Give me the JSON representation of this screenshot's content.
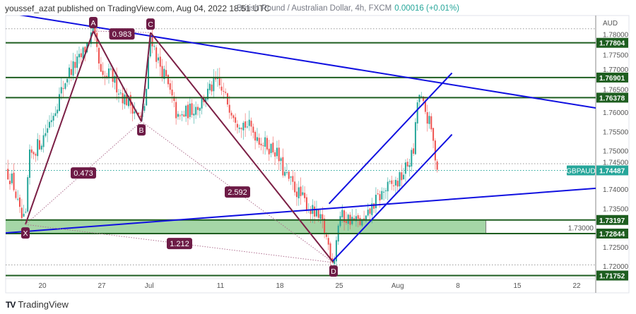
{
  "header": {
    "published": "youssef_azat published on TradingView.com, Aug 04, 2022 18:51 UTC"
  },
  "legend": {
    "symbol_title": "British Pound / Australian Dollar, 4h, FXCM",
    "change": "0.00016 (+0.01%)"
  },
  "footer": {
    "logo_text": "TradingView"
  },
  "colors": {
    "up": "#26a69a",
    "down": "#ef5350",
    "level": "#1e5e20",
    "zone": "#a5d6a7",
    "trend": "#1010e0",
    "pattern": "#7b1f45",
    "label_bg": "#6d1b46",
    "price_tag": "#26a69a"
  },
  "chart_data": {
    "type": "candlestick",
    "title": "British Pound / Australian Dollar, 4h, FXCM",
    "currency_label": "AUD",
    "ylim": [
      1.715,
      1.785
    ],
    "y_ticks": [
      "1.78000",
      "1.77500",
      "1.77000",
      "1.76500",
      "1.76000",
      "1.75500",
      "1.75000",
      "1.74500",
      "1.74000",
      "1.73500",
      "1.73000",
      "1.72500",
      "1.72000"
    ],
    "x_ticks": [
      {
        "label": "20",
        "day": 0
      },
      {
        "label": "27",
        "day": 7
      },
      {
        "label": "Jul",
        "day": 12.6
      },
      {
        "label": "11",
        "day": 21
      },
      {
        "label": "18",
        "day": 28
      },
      {
        "label": "25",
        "day": 35
      },
      {
        "label": "Aug",
        "day": 41.9
      },
      {
        "label": "8",
        "day": 49
      },
      {
        "label": "15",
        "day": 56
      },
      {
        "label": "22",
        "day": 63
      }
    ],
    "x_unit": "days since Jun 20, 2022",
    "price_path": [
      [
        -4.3,
        1.745
      ],
      [
        -3.5,
        1.742
      ],
      [
        -2.6,
        1.733
      ],
      [
        -2.0,
        1.731
      ],
      [
        -1.6,
        1.748
      ],
      [
        0,
        1.753
      ],
      [
        1.5,
        1.761
      ],
      [
        3,
        1.77
      ],
      [
        4.5,
        1.774
      ],
      [
        6,
        1.7811
      ],
      [
        7,
        1.768
      ],
      [
        8,
        1.77
      ],
      [
        9.5,
        1.764
      ],
      [
        10.5,
        1.762
      ],
      [
        11.67,
        1.7576
      ],
      [
        12.2,
        1.764
      ],
      [
        12.75,
        1.7807
      ],
      [
        13.5,
        1.774
      ],
      [
        14.5,
        1.769
      ],
      [
        16,
        1.758
      ],
      [
        17,
        1.76
      ],
      [
        18.5,
        1.762
      ],
      [
        20.5,
        1.768
      ],
      [
        21.5,
        1.764
      ],
      [
        23,
        1.758
      ],
      [
        24.5,
        1.756
      ],
      [
        26,
        1.752
      ],
      [
        27.5,
        1.75
      ],
      [
        28.5,
        1.744
      ],
      [
        29.5,
        1.741
      ],
      [
        30.5,
        1.738
      ],
      [
        31.5,
        1.735
      ],
      [
        33,
        1.731
      ],
      [
        34.33,
        1.7209
      ],
      [
        35,
        1.733
      ],
      [
        36.5,
        1.732
      ],
      [
        38,
        1.731
      ],
      [
        39,
        1.736
      ],
      [
        40.5,
        1.74
      ],
      [
        42,
        1.742
      ],
      [
        43,
        1.746
      ],
      [
        43.8,
        1.75
      ],
      [
        44.3,
        1.765
      ],
      [
        45,
        1.761
      ],
      [
        45.8,
        1.756
      ],
      [
        46.3,
        1.749
      ],
      [
        46.7,
        1.7449
      ]
    ],
    "last_price": {
      "symbol": "GBPAUD",
      "value": "1.74487",
      "price": 1.74487
    },
    "horizontal_levels": [
      {
        "label": "1.77804",
        "price": 1.77804
      },
      {
        "label": "1.76901",
        "price": 1.76901
      },
      {
        "label": "1.76378",
        "price": 1.76378
      },
      {
        "label": "1.73197",
        "price": 1.73197
      },
      {
        "label": "1.72844",
        "price": 1.72844
      },
      {
        "label": "1.71752",
        "price": 1.71752
      }
    ],
    "zone": {
      "top": 1.73197,
      "bottom": 1.72844,
      "from_day": -4.4,
      "to_day": 52.3
    },
    "dotted_levels": [
      1.7817,
      1.7466,
      1.7203
    ],
    "trendlines": [
      {
        "name": "descending-resistance",
        "from": [
          -4.33,
          1.7859
        ],
        "to": [
          65.25,
          1.7611
        ]
      },
      {
        "name": "ascending-support",
        "from": [
          -4.33,
          1.7286
        ],
        "to": [
          65.25,
          1.7402
        ]
      },
      {
        "name": "channel-lower",
        "from": [
          34.2,
          1.7212
        ],
        "to": [
          48.3,
          1.7542
        ]
      },
      {
        "name": "channel-upper",
        "from": [
          33.8,
          1.7362
        ],
        "to": [
          48.3,
          1.7702
        ]
      }
    ],
    "harmonic_pattern": {
      "points": [
        {
          "label": "X",
          "day": -2.0,
          "price": 1.7308
        },
        {
          "label": "A",
          "day": 6.0,
          "price": 1.7811
        },
        {
          "label": "B",
          "day": 11.67,
          "price": 1.7576
        },
        {
          "label": "C",
          "day": 12.75,
          "price": 1.7807
        },
        {
          "label": "D",
          "day": 34.33,
          "price": 1.7209
        }
      ],
      "ratios": [
        {
          "value": "0.983",
          "between": [
            "A",
            "C"
          ]
        },
        {
          "value": "0.473",
          "between": [
            "X",
            "B"
          ]
        },
        {
          "value": "2.592",
          "between": [
            "B",
            "D"
          ]
        },
        {
          "value": "1.212",
          "between": [
            "X",
            "D"
          ]
        }
      ]
    }
  }
}
